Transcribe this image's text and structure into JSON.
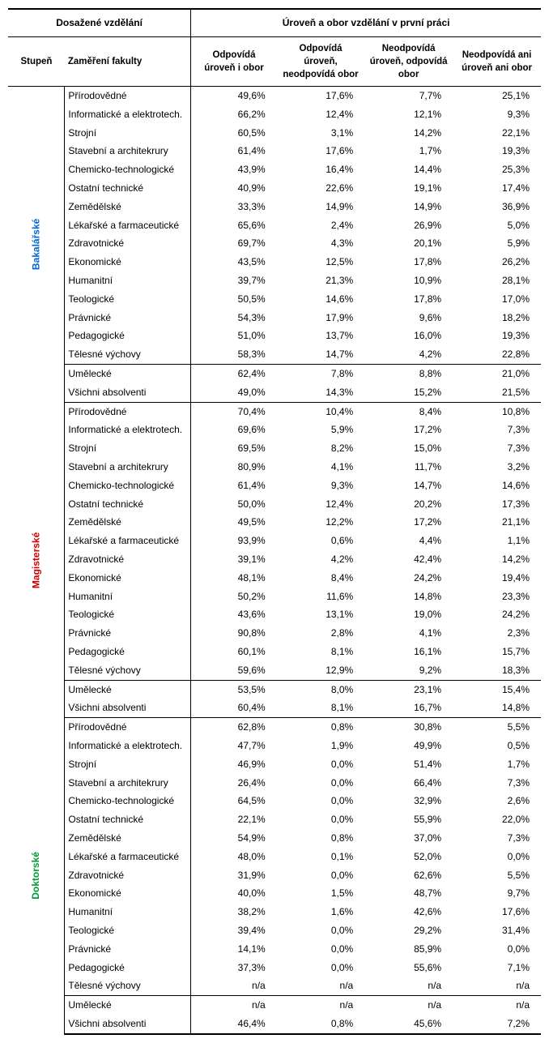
{
  "header": {
    "left_group": "Dosažené vzdělání",
    "right_group": "Úroveň a obor vzdělání v první práci",
    "col_degree": "Stupeň",
    "col_faculty": "Zaměření fakulty",
    "col1": "Odpovídá úroveň i obor",
    "col2": "Odpovídá úroveň, neodpovídá obor",
    "col3": "Neodpovídá úroveň, odpovídá obor",
    "col4": "Neodpovídá ani úroveň ani obor"
  },
  "degrees": [
    {
      "label": "Bakalářské",
      "color": "#0066cc"
    },
    {
      "label": "Magisterské",
      "color": "#cc0000"
    },
    {
      "label": "Doktorské",
      "color": "#009933"
    }
  ],
  "sections": [
    {
      "rows": [
        {
          "f": "Přírodovědné",
          "v": [
            "49,6%",
            "17,6%",
            "7,7%",
            "25,1%"
          ]
        },
        {
          "f": "Informatické a elektrotech.",
          "v": [
            "66,2%",
            "12,4%",
            "12,1%",
            "9,3%"
          ]
        },
        {
          "f": "Strojní",
          "v": [
            "60,5%",
            "3,1%",
            "14,2%",
            "22,1%"
          ]
        },
        {
          "f": "Stavební a architekrury",
          "v": [
            "61,4%",
            "17,6%",
            "1,7%",
            "19,3%"
          ]
        },
        {
          "f": "Chemicko-technologické",
          "v": [
            "43,9%",
            "16,4%",
            "14,4%",
            "25,3%"
          ]
        },
        {
          "f": "Ostatní technické",
          "v": [
            "40,9%",
            "22,6%",
            "19,1%",
            "17,4%"
          ]
        },
        {
          "f": "Zemědělské",
          "v": [
            "33,3%",
            "14,9%",
            "14,9%",
            "36,9%"
          ]
        },
        {
          "f": "Lékařské a farmaceutické",
          "v": [
            "65,6%",
            "2,4%",
            "26,9%",
            "5,0%"
          ]
        },
        {
          "f": "Zdravotnické",
          "v": [
            "69,7%",
            "4,3%",
            "20,1%",
            "5,9%"
          ]
        },
        {
          "f": "Ekonomické",
          "v": [
            "43,5%",
            "12,5%",
            "17,8%",
            "26,2%"
          ]
        },
        {
          "f": "Humanitní",
          "v": [
            "39,7%",
            "21,3%",
            "10,9%",
            "28,1%"
          ]
        },
        {
          "f": "Teologické",
          "v": [
            "50,5%",
            "14,6%",
            "17,8%",
            "17,0%"
          ]
        },
        {
          "f": "Právnické",
          "v": [
            "54,3%",
            "17,9%",
            "9,6%",
            "18,2%"
          ]
        },
        {
          "f": "Pedagogické",
          "v": [
            "51,0%",
            "13,7%",
            "16,0%",
            "19,3%"
          ]
        },
        {
          "f": "Tělesné výchovy",
          "v": [
            "58,3%",
            "14,7%",
            "4,2%",
            "22,8%"
          ]
        },
        {
          "f": "Umělecké",
          "v": [
            "62,4%",
            "7,8%",
            "8,8%",
            "21,0%"
          ],
          "sep_above": true
        },
        {
          "f": "Všichni absolventi",
          "v": [
            "49,0%",
            "14,3%",
            "15,2%",
            "21,5%"
          ]
        }
      ]
    },
    {
      "rows": [
        {
          "f": "Přírodovědné",
          "v": [
            "70,4%",
            "10,4%",
            "8,4%",
            "10,8%"
          ]
        },
        {
          "f": "Informatické a elektrotech.",
          "v": [
            "69,6%",
            "5,9%",
            "17,2%",
            "7,3%"
          ]
        },
        {
          "f": "Strojní",
          "v": [
            "69,5%",
            "8,2%",
            "15,0%",
            "7,3%"
          ]
        },
        {
          "f": "Stavební a architekrury",
          "v": [
            "80,9%",
            "4,1%",
            "11,7%",
            "3,2%"
          ]
        },
        {
          "f": "Chemicko-technologické",
          "v": [
            "61,4%",
            "9,3%",
            "14,7%",
            "14,6%"
          ]
        },
        {
          "f": "Ostatní technické",
          "v": [
            "50,0%",
            "12,4%",
            "20,2%",
            "17,3%"
          ]
        },
        {
          "f": "Zemědělské",
          "v": [
            "49,5%",
            "12,2%",
            "17,2%",
            "21,1%"
          ]
        },
        {
          "f": "Lékařské a farmaceutické",
          "v": [
            "93,9%",
            "0,6%",
            "4,4%",
            "1,1%"
          ]
        },
        {
          "f": "Zdravotnické",
          "v": [
            "39,1%",
            "4,2%",
            "42,4%",
            "14,2%"
          ]
        },
        {
          "f": "Ekonomické",
          "v": [
            "48,1%",
            "8,4%",
            "24,2%",
            "19,4%"
          ]
        },
        {
          "f": "Humanitní",
          "v": [
            "50,2%",
            "11,6%",
            "14,8%",
            "23,3%"
          ]
        },
        {
          "f": "Teologické",
          "v": [
            "43,6%",
            "13,1%",
            "19,0%",
            "24,2%"
          ]
        },
        {
          "f": "Právnické",
          "v": [
            "90,8%",
            "2,8%",
            "4,1%",
            "2,3%"
          ]
        },
        {
          "f": "Pedagogické",
          "v": [
            "60,1%",
            "8,1%",
            "16,1%",
            "15,7%"
          ]
        },
        {
          "f": "Tělesné výchovy",
          "v": [
            "59,6%",
            "12,9%",
            "9,2%",
            "18,3%"
          ]
        },
        {
          "f": "Umělecké",
          "v": [
            "53,5%",
            "8,0%",
            "23,1%",
            "15,4%"
          ],
          "sep_above": true
        },
        {
          "f": "Všichni absolventi",
          "v": [
            "60,4%",
            "8,1%",
            "16,7%",
            "14,8%"
          ]
        }
      ]
    },
    {
      "rows": [
        {
          "f": "Přírodovědné",
          "v": [
            "62,8%",
            "0,8%",
            "30,8%",
            "5,5%"
          ]
        },
        {
          "f": "Informatické a elektrotech.",
          "v": [
            "47,7%",
            "1,9%",
            "49,9%",
            "0,5%"
          ]
        },
        {
          "f": "Strojní",
          "v": [
            "46,9%",
            "0,0%",
            "51,4%",
            "1,7%"
          ]
        },
        {
          "f": "Stavební a architekrury",
          "v": [
            "26,4%",
            "0,0%",
            "66,4%",
            "7,3%"
          ]
        },
        {
          "f": "Chemicko-technologické",
          "v": [
            "64,5%",
            "0,0%",
            "32,9%",
            "2,6%"
          ]
        },
        {
          "f": "Ostatní technické",
          "v": [
            "22,1%",
            "0,0%",
            "55,9%",
            "22,0%"
          ]
        },
        {
          "f": "Zemědělské",
          "v": [
            "54,9%",
            "0,8%",
            "37,0%",
            "7,3%"
          ]
        },
        {
          "f": "Lékařské a farmaceutické",
          "v": [
            "48,0%",
            "0,1%",
            "52,0%",
            "0,0%"
          ]
        },
        {
          "f": "Zdravotnické",
          "v": [
            "31,9%",
            "0,0%",
            "62,6%",
            "5,5%"
          ]
        },
        {
          "f": "Ekonomické",
          "v": [
            "40,0%",
            "1,5%",
            "48,7%",
            "9,7%"
          ]
        },
        {
          "f": "Humanitní",
          "v": [
            "38,2%",
            "1,6%",
            "42,6%",
            "17,6%"
          ]
        },
        {
          "f": "Teologické",
          "v": [
            "39,4%",
            "0,0%",
            "29,2%",
            "31,4%"
          ]
        },
        {
          "f": "Právnické",
          "v": [
            "14,1%",
            "0,0%",
            "85,9%",
            "0,0%"
          ]
        },
        {
          "f": "Pedagogické",
          "v": [
            "37,3%",
            "0,0%",
            "55,6%",
            "7,1%"
          ]
        },
        {
          "f": "Tělesné výchovy",
          "v": [
            "n/a",
            "n/a",
            "n/a",
            "n/a"
          ]
        },
        {
          "f": "Umělecké",
          "v": [
            "n/a",
            "n/a",
            "n/a",
            "n/a"
          ],
          "sep_above": true
        },
        {
          "f": "Všichni absolventi",
          "v": [
            "46,4%",
            "0,8%",
            "45,6%",
            "7,2%"
          ]
        }
      ]
    }
  ]
}
